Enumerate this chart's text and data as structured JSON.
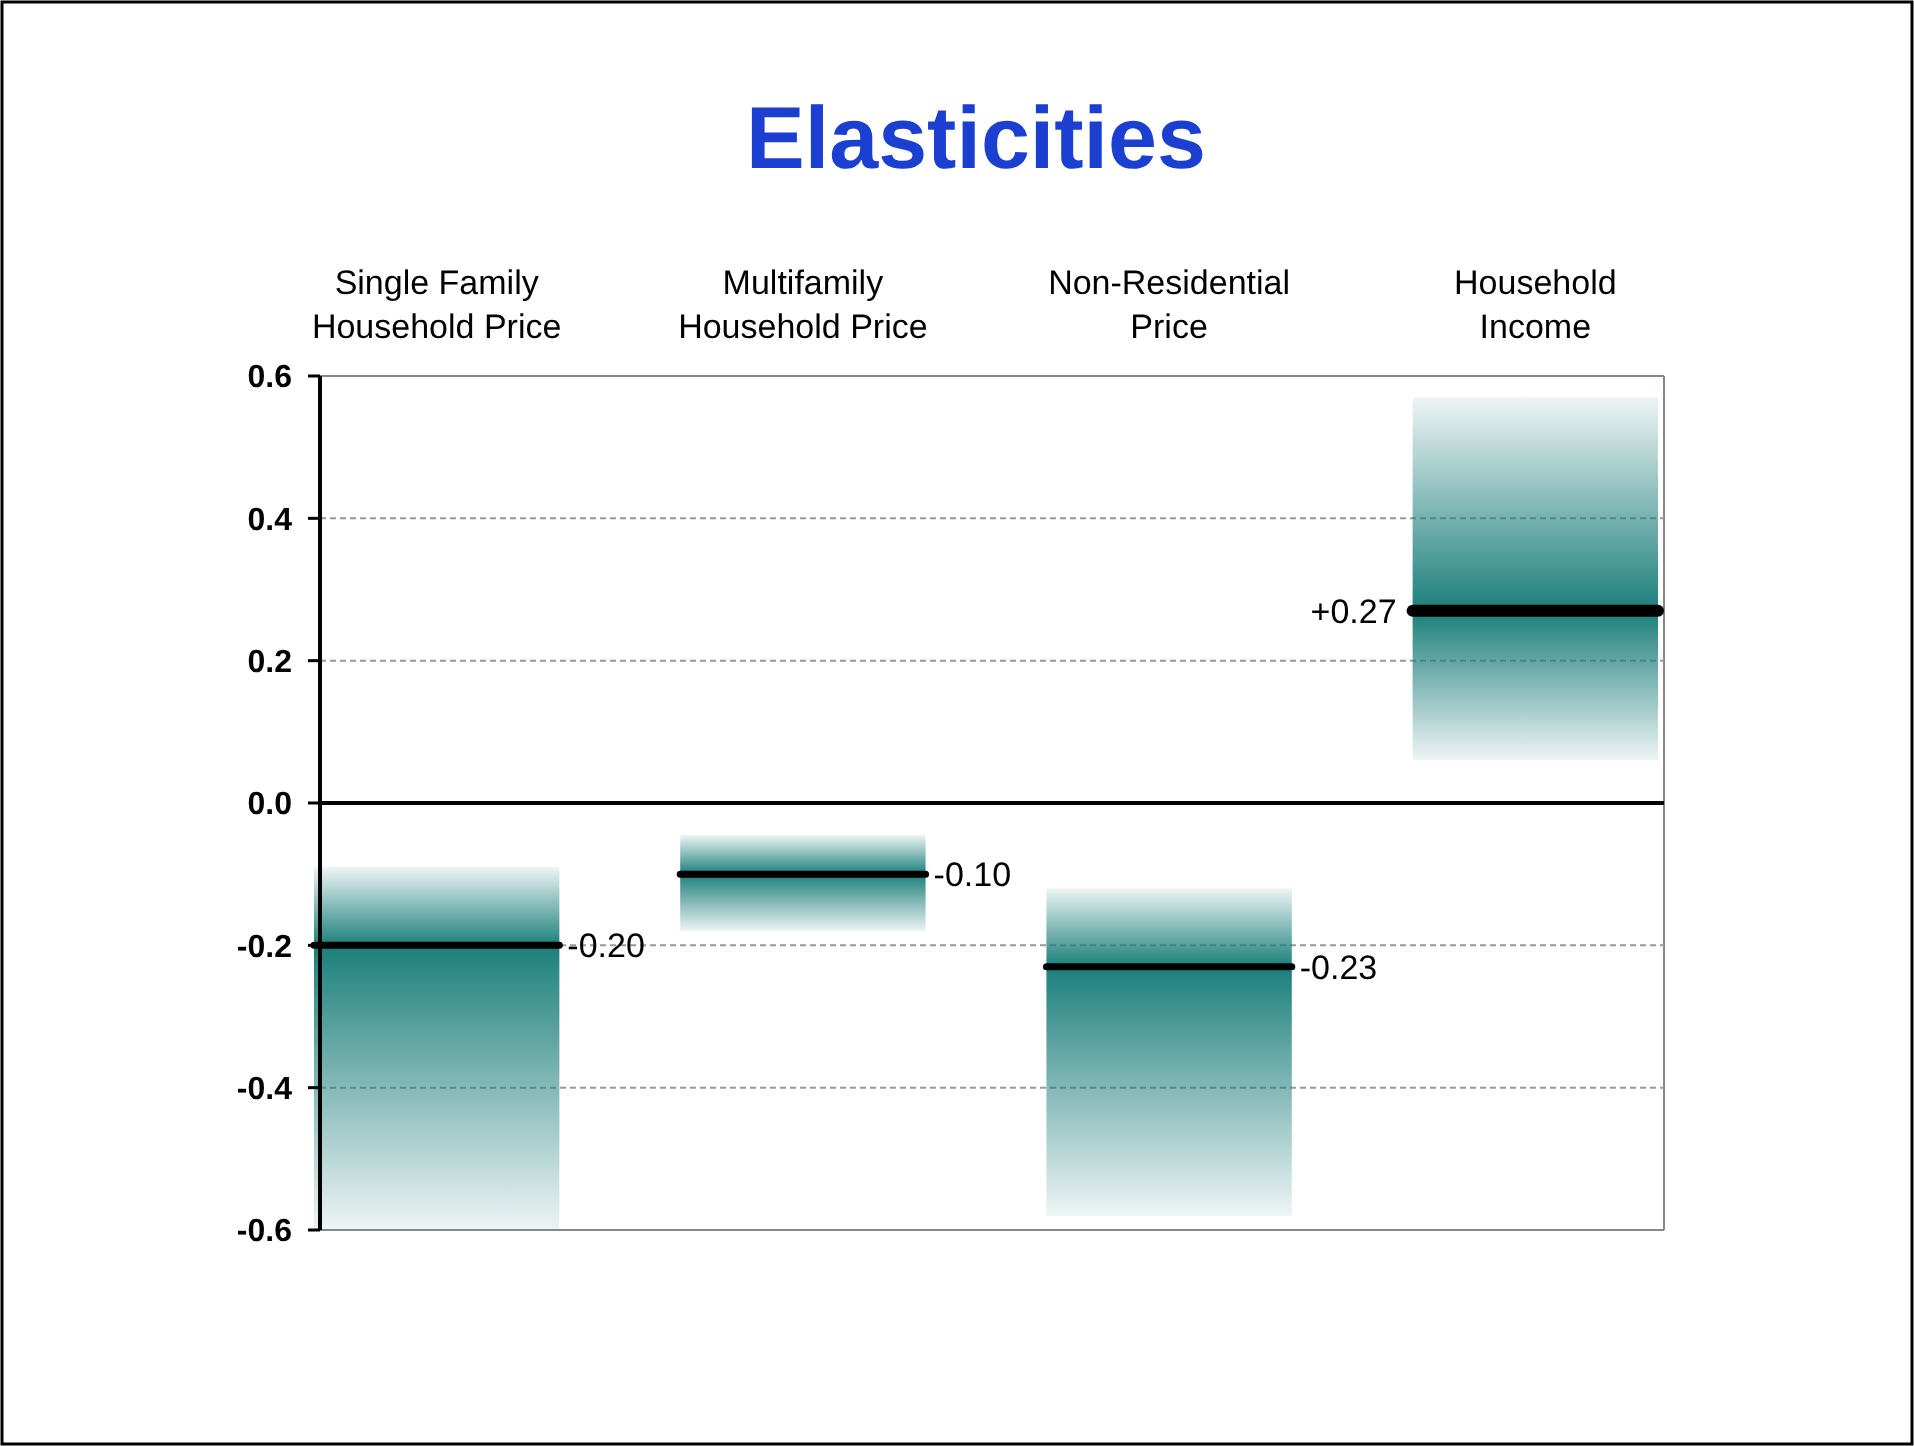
{
  "chart_data": {
    "type": "box",
    "title": "Elasticities",
    "categories": [
      "Single Family Household Price",
      "Multifamily Household Price",
      "Non-Residential Price",
      "Household Income"
    ],
    "boxes": [
      {
        "low": -0.6,
        "q1": -0.6,
        "median": -0.2,
        "q3": -0.09,
        "high": -0.09
      },
      {
        "low": -0.18,
        "q1": -0.18,
        "median": -0.1,
        "q3": -0.045,
        "high": -0.045
      },
      {
        "low": -0.58,
        "q1": -0.58,
        "median": -0.23,
        "q3": -0.12,
        "high": -0.12
      },
      {
        "low": 0.06,
        "q1": 0.06,
        "median": 0.27,
        "q3": 0.57,
        "high": 0.57
      }
    ],
    "color": "#1b7f7b",
    "annotations": [
      "-0.20",
      "-0.10",
      "-0.23",
      "+0.27"
    ],
    "ylim": [
      -0.6,
      0.6
    ],
    "yticks": [
      {
        "value": -0.6,
        "label": "-0.6"
      },
      {
        "value": -0.4,
        "label": "-0.4"
      },
      {
        "value": -0.2,
        "label": "-0.2"
      },
      {
        "value": 0,
        "label": "0.0"
      },
      {
        "value": 0.2,
        "label": "0.2"
      },
      {
        "value": 0.4,
        "label": "0.4"
      },
      {
        "value": 0.6,
        "label": "0.6"
      }
    ],
    "grid": "y"
  }
}
